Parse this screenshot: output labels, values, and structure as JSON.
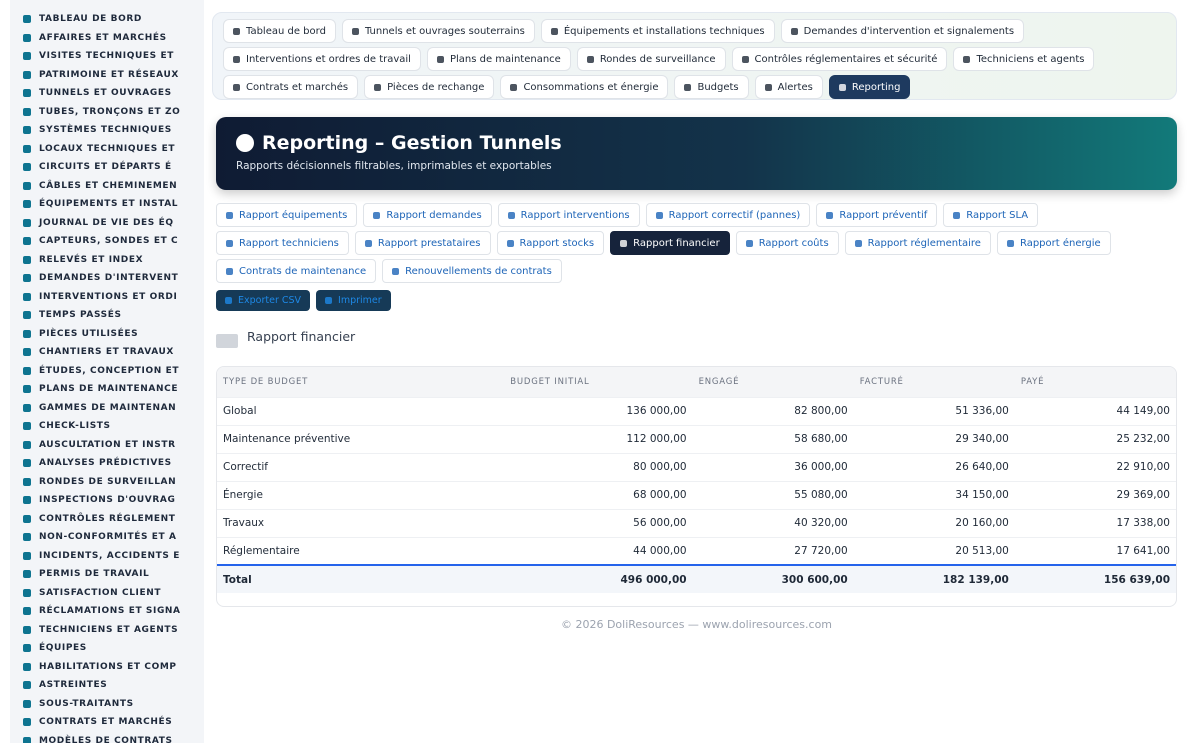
{
  "sidebar": {
    "items": [
      "TABLEAU DE BORD",
      "AFFAIRES ET MARCHÉS",
      "VISITES TECHNIQUES ET",
      "PATRIMOINE ET RÉSEAUX",
      "TUNNELS ET OUVRAGES",
      "TUBES, TRONÇONS ET ZO",
      "SYSTÈMES TECHNIQUES",
      "LOCAUX TECHNIQUES ET",
      "CIRCUITS ET DÉPARTS É",
      "CÂBLES ET CHEMINEMEN",
      "ÉQUIPEMENTS ET INSTAL",
      "JOURNAL DE VIE DES ÉQ",
      "CAPTEURS, SONDES ET C",
      "RELEVÉS ET INDEX",
      "DEMANDES D'INTERVENT",
      "INTERVENTIONS ET ORDI",
      "TEMPS PASSÉS",
      "PIÈCES UTILISÉES",
      "CHANTIERS ET TRAVAUX",
      "ÉTUDES, CONCEPTION ET",
      "PLANS DE MAINTENANCE",
      "GAMMES DE MAINTENAN",
      "CHECK-LISTS",
      "AUSCULTATION ET INSTR",
      "ANALYSES PRÉDICTIVES",
      "RONDES DE SURVEILLAN",
      "INSPECTIONS D'OUVRAG",
      "CONTRÔLES RÉGLEMENT",
      "NON-CONFORMITÉS ET A",
      "INCIDENTS, ACCIDENTS E",
      "PERMIS DE TRAVAIL",
      "SATISFACTION CLIENT",
      "RÉCLAMATIONS ET SIGNA",
      "TECHNICIENS ET AGENTS",
      "ÉQUIPES",
      "HABILITATIONS ET COMP",
      "ASTREINTES",
      "SOUS-TRAITANTS",
      "CONTRATS ET MARCHÉS",
      "MODÈLES DE CONTRATS"
    ]
  },
  "nav": {
    "tabs": [
      "Tableau de bord",
      "Tunnels et ouvrages souterrains",
      "Équipements et installations techniques",
      "Demandes d'intervention et signalements",
      "Interventions et ordres de travail",
      "Plans de maintenance",
      "Rondes de surveillance",
      "Contrôles réglementaires et sécurité",
      "Techniciens et agents",
      "Contrats et marchés",
      "Pièces de rechange",
      "Consommations et énergie",
      "Budgets",
      "Alertes",
      "Reporting"
    ],
    "active": 14
  },
  "header": {
    "title": "Reporting – Gestion Tunnels",
    "subtitle": "Rapports décisionnels filtrables, imprimables et exportables"
  },
  "reports": {
    "tabs": [
      "Rapport équipements",
      "Rapport demandes",
      "Rapport interventions",
      "Rapport correctif (pannes)",
      "Rapport préventif",
      "Rapport SLA",
      "Rapport techniciens",
      "Rapport prestataires",
      "Rapport stocks",
      "Rapport financier",
      "Rapport coûts",
      "Rapport réglementaire",
      "Rapport énergie",
      "Contrats de maintenance",
      "Renouvellements de contrats"
    ],
    "active": 9
  },
  "actions": [
    "Exporter CSV",
    "Imprimer"
  ],
  "section": {
    "title": "Rapport financier"
  },
  "table": {
    "headers": [
      "TYPE DE BUDGET",
      "BUDGET INITIAL",
      "ENGAGÉ",
      "FACTURÉ",
      "PAYÉ"
    ],
    "rows": [
      [
        "Global",
        "136 000,00",
        "82 800,00",
        "51 336,00",
        "44 149,00"
      ],
      [
        "Maintenance préventive",
        "112 000,00",
        "58 680,00",
        "29 340,00",
        "25 232,00"
      ],
      [
        "Correctif",
        "80 000,00",
        "36 000,00",
        "26 640,00",
        "22 910,00"
      ],
      [
        "Énergie",
        "68 000,00",
        "55 080,00",
        "34 150,00",
        "29 369,00"
      ],
      [
        "Travaux",
        "56 000,00",
        "40 320,00",
        "20 160,00",
        "17 338,00"
      ],
      [
        "Réglementaire",
        "44 000,00",
        "27 720,00",
        "20 513,00",
        "17 641,00"
      ]
    ],
    "total": [
      "Total",
      "496 000,00",
      "300 600,00",
      "182 139,00",
      "156 639,00"
    ]
  },
  "footer": "© 2026 DoliResources — www.doliresources.com"
}
